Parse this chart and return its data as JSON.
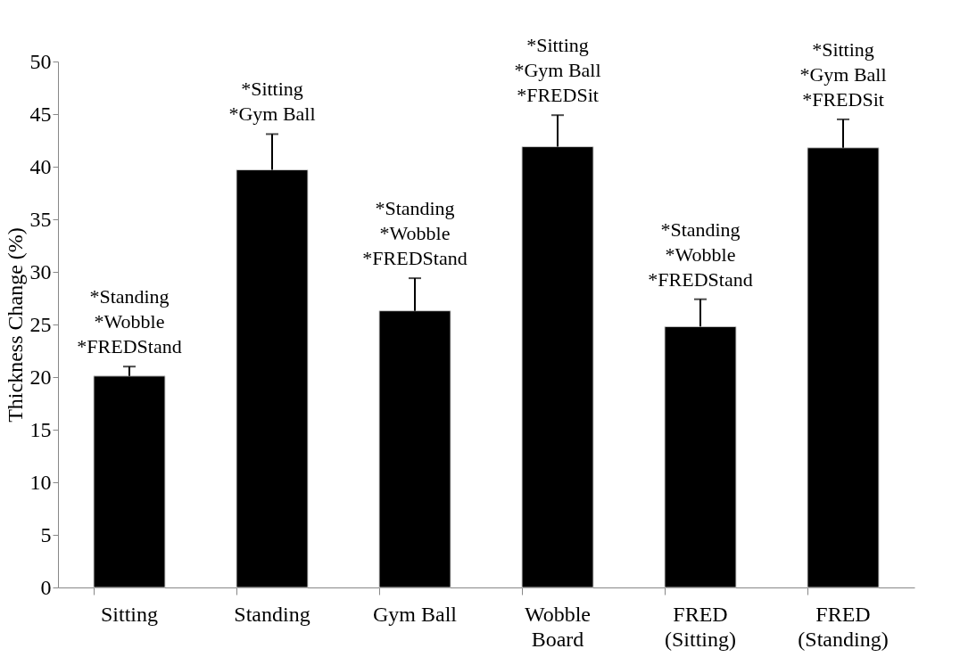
{
  "chart_data": {
    "type": "bar",
    "ylabel": "Thickness Change (%)",
    "categories": [
      "Sitting",
      "Standing",
      "Gym Ball",
      "Wobble\nBoard",
      "FRED\n(Sitting)",
      "FRED\n(Standing)"
    ],
    "values": [
      20.1,
      39.7,
      26.3,
      41.9,
      24.8,
      41.8
    ],
    "errors": [
      0.9,
      3.4,
      3.1,
      3.0,
      2.6,
      2.7
    ],
    "color": "#000000",
    "ylim": [
      0,
      50
    ],
    "yticks": [
      0,
      5,
      10,
      15,
      20,
      25,
      30,
      35,
      40,
      45,
      50
    ],
    "grid": false,
    "annotations": [
      {
        "text": "*Standing\n*Wobble\n*FREDStand",
        "x": "Sitting",
        "y": 21.0
      },
      {
        "text": "*Sitting\n*Gym Ball",
        "x": "Standing",
        "y": 43.1
      },
      {
        "text": "*Standing\n*Wobble\n*FREDStand",
        "x": "Gym Ball",
        "y": 29.4
      },
      {
        "text": "*Sitting\n*Gym Ball\n*FREDSit",
        "x": "Wobble\nBoard",
        "y": 44.9
      },
      {
        "text": "*Standing\n*Wobble\n*FREDStand",
        "x": "FRED\n(Sitting)",
        "y": 27.4
      },
      {
        "text": "*Sitting\n*Gym Ball\n*FREDSit",
        "x": "FRED\n(Standing)",
        "y": 44.5
      }
    ]
  }
}
